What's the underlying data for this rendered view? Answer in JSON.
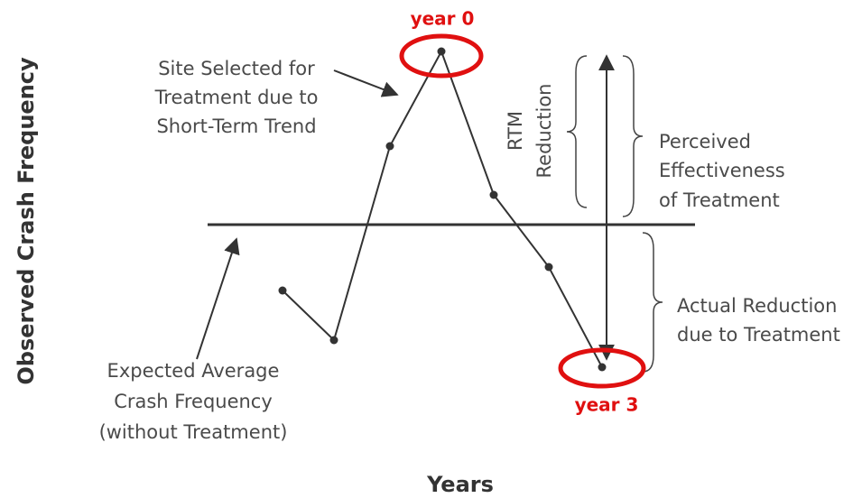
{
  "axes": {
    "y_label": "Observed Crash Frequency",
    "x_label": "Years"
  },
  "markers": {
    "start": "year 0",
    "end": "year 3"
  },
  "labels": {
    "site_selected": [
      "Site Selected for",
      "Treatment due to",
      "Short-Term Trend"
    ],
    "rtm": [
      "RTM",
      "Reduction"
    ],
    "perceived": [
      "Perceived",
      "Effectiveness",
      "of Treatment"
    ],
    "actual": [
      "Actual Reduction",
      "due to Treatment"
    ],
    "expected": [
      "Expected Average",
      "Crash Frequency",
      "(without Treatment)"
    ]
  }
}
